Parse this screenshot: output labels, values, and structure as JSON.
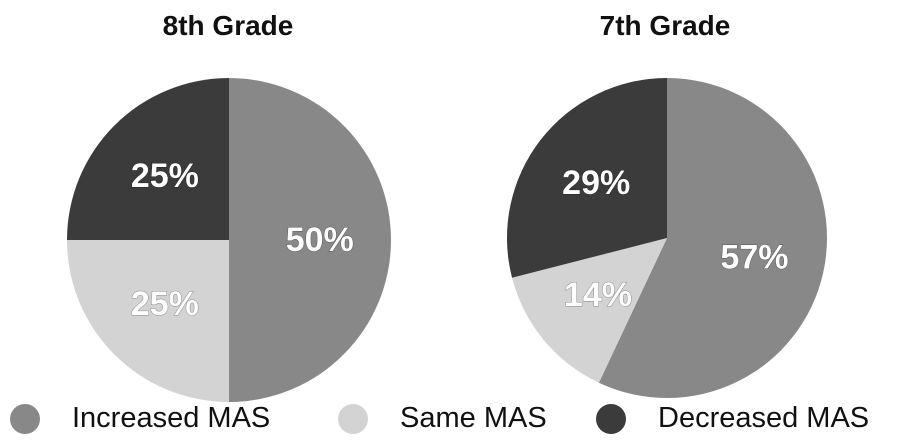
{
  "chart_data": [
    {
      "type": "pie",
      "title": "8th Grade",
      "slices": [
        {
          "label": "Increased MAS",
          "value": 50,
          "display": "50%"
        },
        {
          "label": "Same MAS",
          "value": 25,
          "display": "25%"
        },
        {
          "label": "Decreased MAS",
          "value": 25,
          "display": "25%"
        }
      ]
    },
    {
      "type": "pie",
      "title": "7th Grade",
      "slices": [
        {
          "label": "Increased MAS",
          "value": 57,
          "display": "57%"
        },
        {
          "label": "Same MAS",
          "value": 14,
          "display": "14%"
        },
        {
          "label": "Decreased MAS",
          "value": 29,
          "display": "29%"
        }
      ]
    }
  ],
  "legend": [
    {
      "label": "Increased MAS",
      "color": "#888888"
    },
    {
      "label": "Same MAS",
      "color": "#d3d3d3"
    },
    {
      "label": "Decreased MAS",
      "color": "#3b3b3b"
    }
  ],
  "slice_colors": [
    "#888888",
    "#d3d3d3",
    "#3b3b3b"
  ]
}
